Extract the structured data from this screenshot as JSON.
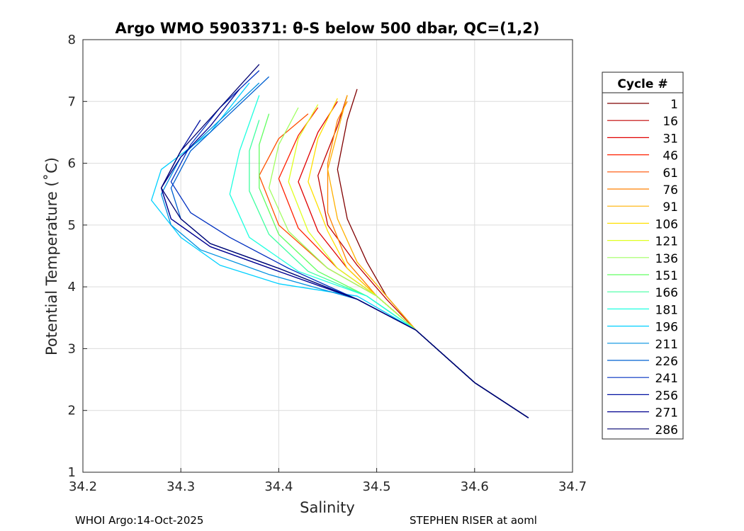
{
  "chart_data": {
    "type": "line",
    "title": "Argo WMO 5903371: θ-S below 500 dbar,  QC=(1,2)",
    "xlabel": "Salinity",
    "ylabel": "Potential Temperature (˚C)",
    "xlim": [
      34.2,
      34.7
    ],
    "ylim": [
      1,
      8
    ],
    "xticks": [
      "34.2",
      "34.3",
      "34.4",
      "34.5",
      "34.6",
      "34.7"
    ],
    "yticks": [
      "1",
      "2",
      "3",
      "4",
      "5",
      "6",
      "7",
      "8"
    ],
    "grid": true,
    "legend": {
      "title": "Cycle #",
      "placement": "right-outside",
      "entries": [
        "1",
        "16",
        "31",
        "46",
        "61",
        "76",
        "91",
        "106",
        "121",
        "136",
        "151",
        "166",
        "181",
        "196",
        "211",
        "226",
        "241",
        "256",
        "271",
        "286"
      ],
      "colors": [
        "#800000",
        "#c00000",
        "#e00000",
        "#ff2000",
        "#ff5000",
        "#ff8000",
        "#ffb000",
        "#ffe000",
        "#e0ff20",
        "#a0ff60",
        "#60ff60",
        "#40ffa0",
        "#20ffe0",
        "#00d0ff",
        "#0090e0",
        "#0060d0",
        "#0030c0",
        "#0010a0",
        "#000090",
        "#000070"
      ]
    },
    "series_note": "",
    "series": [
      {
        "name": "1",
        "x": [
          34.655,
          34.6,
          34.54,
          34.51,
          34.49,
          34.47,
          34.46,
          34.47,
          34.48
        ],
        "y": [
          1.88,
          2.45,
          3.3,
          3.85,
          4.4,
          5.1,
          5.9,
          6.7,
          7.2
        ]
      },
      {
        "name": "16",
        "x": [
          34.655,
          34.6,
          34.54,
          34.51,
          34.48,
          34.45,
          34.44,
          34.46,
          34.47
        ],
        "y": [
          1.88,
          2.45,
          3.3,
          3.8,
          4.35,
          5.0,
          5.8,
          6.6,
          7.1
        ]
      },
      {
        "name": "31",
        "x": [
          34.655,
          34.6,
          34.54,
          34.5,
          34.47,
          34.44,
          34.42,
          34.44,
          34.46
        ],
        "y": [
          1.88,
          2.45,
          3.3,
          3.85,
          4.3,
          4.9,
          5.7,
          6.5,
          7.0
        ]
      },
      {
        "name": "46",
        "x": [
          34.655,
          34.6,
          34.54,
          34.5,
          34.46,
          34.42,
          34.4,
          34.42,
          34.44
        ],
        "y": [
          1.88,
          2.45,
          3.3,
          3.85,
          4.3,
          4.95,
          5.75,
          6.45,
          6.9
        ]
      },
      {
        "name": "61",
        "x": [
          34.655,
          34.6,
          34.54,
          34.5,
          34.45,
          34.4,
          34.38,
          34.4,
          34.43
        ],
        "y": [
          1.88,
          2.45,
          3.3,
          3.85,
          4.3,
          5.0,
          5.8,
          6.4,
          6.8
        ]
      },
      {
        "name": "76",
        "x": [
          34.655,
          34.6,
          34.54,
          34.5,
          34.47,
          34.45,
          34.45,
          34.46,
          34.47
        ],
        "y": [
          1.88,
          2.45,
          3.3,
          3.85,
          4.4,
          5.2,
          6.0,
          6.7,
          7.0
        ]
      },
      {
        "name": "91",
        "x": [
          34.655,
          34.6,
          34.54,
          34.51,
          34.48,
          34.46,
          34.45,
          34.46,
          34.47
        ],
        "y": [
          1.88,
          2.45,
          3.3,
          3.85,
          4.4,
          5.1,
          5.9,
          6.5,
          7.1
        ]
      },
      {
        "name": "106",
        "x": [
          34.655,
          34.6,
          34.54,
          34.5,
          34.47,
          34.45,
          34.43,
          34.44,
          34.46
        ],
        "y": [
          1.88,
          2.45,
          3.3,
          3.85,
          4.3,
          4.9,
          5.7,
          6.4,
          7.05
        ]
      },
      {
        "name": "121",
        "x": [
          34.655,
          34.6,
          34.54,
          34.5,
          34.46,
          34.43,
          34.41,
          34.42,
          34.44
        ],
        "y": [
          1.88,
          2.45,
          3.3,
          3.85,
          4.3,
          4.9,
          5.7,
          6.4,
          6.95
        ]
      },
      {
        "name": "136",
        "x": [
          34.655,
          34.6,
          34.54,
          34.5,
          34.45,
          34.41,
          34.39,
          34.4,
          34.42
        ],
        "y": [
          1.88,
          2.45,
          3.3,
          3.85,
          4.3,
          4.9,
          5.6,
          6.3,
          6.9
        ]
      },
      {
        "name": "151",
        "x": [
          34.655,
          34.6,
          34.54,
          34.49,
          34.44,
          34.4,
          34.38,
          34.38,
          34.39
        ],
        "y": [
          1.88,
          2.45,
          3.3,
          3.85,
          4.25,
          4.85,
          5.6,
          6.3,
          6.8
        ]
      },
      {
        "name": "166",
        "x": [
          34.655,
          34.6,
          34.54,
          34.49,
          34.43,
          34.39,
          34.37,
          34.37,
          34.38
        ],
        "y": [
          1.88,
          2.45,
          3.3,
          3.85,
          4.25,
          4.85,
          5.55,
          6.2,
          6.7
        ]
      },
      {
        "name": "181",
        "x": [
          34.655,
          34.6,
          34.54,
          34.49,
          34.42,
          34.37,
          34.35,
          34.36,
          34.38
        ],
        "y": [
          1.88,
          2.45,
          3.3,
          3.85,
          4.25,
          4.8,
          5.5,
          6.2,
          7.1
        ]
      },
      {
        "name": "196",
        "x": [
          34.655,
          34.6,
          34.54,
          34.48,
          34.4,
          34.34,
          34.3,
          34.27,
          34.28,
          34.33,
          34.37
        ],
        "y": [
          1.88,
          2.45,
          3.3,
          3.85,
          4.05,
          4.35,
          4.8,
          5.4,
          5.9,
          6.5,
          7.3
        ]
      },
      {
        "name": "211",
        "x": [
          34.655,
          34.6,
          34.54,
          34.48,
          34.39,
          34.32,
          34.29,
          34.28,
          34.3,
          34.34,
          34.38
        ],
        "y": [
          1.88,
          2.45,
          3.3,
          3.8,
          4.2,
          4.6,
          5.0,
          5.5,
          6.1,
          6.7,
          7.3
        ]
      },
      {
        "name": "226",
        "x": [
          34.655,
          34.6,
          34.54,
          34.48,
          34.4,
          34.33,
          34.3,
          34.29,
          34.31,
          34.35,
          34.39
        ],
        "y": [
          1.88,
          2.45,
          3.3,
          3.8,
          4.3,
          4.7,
          5.1,
          5.6,
          6.2,
          6.8,
          7.4
        ]
      },
      {
        "name": "241",
        "x": [
          34.655,
          34.6,
          34.54,
          34.48,
          34.41,
          34.35,
          34.31,
          34.29,
          34.31,
          34.34,
          34.38
        ],
        "y": [
          1.88,
          2.45,
          3.3,
          3.8,
          4.3,
          4.8,
          5.2,
          5.7,
          6.3,
          6.9,
          7.5
        ]
      },
      {
        "name": "256",
        "x": [
          34.655,
          34.6,
          34.54,
          34.48,
          34.4,
          34.33,
          34.29,
          34.28,
          34.3,
          34.32
        ],
        "y": [
          1.88,
          2.45,
          3.3,
          3.8,
          4.25,
          4.65,
          5.1,
          5.6,
          6.2,
          6.7
        ]
      },
      {
        "name": "271",
        "x": [
          34.655,
          34.6,
          34.54,
          34.48,
          34.4,
          34.33,
          34.29,
          34.28,
          34.3,
          34.33,
          34.36
        ],
        "y": [
          1.88,
          2.45,
          3.3,
          3.8,
          4.25,
          4.65,
          5.1,
          5.6,
          6.1,
          6.6,
          7.2
        ]
      },
      {
        "name": "286",
        "x": [
          34.655,
          34.6,
          34.54,
          34.48,
          34.4,
          34.33,
          34.3,
          34.28,
          34.3,
          34.34,
          34.38
        ],
        "y": [
          1.88,
          2.45,
          3.3,
          3.8,
          4.3,
          4.7,
          5.1,
          5.6,
          6.2,
          6.9,
          7.6
        ]
      }
    ]
  },
  "footer": {
    "left": "WHOI Argo:14-Oct-2025",
    "right": "STEPHEN RISER at aoml"
  }
}
